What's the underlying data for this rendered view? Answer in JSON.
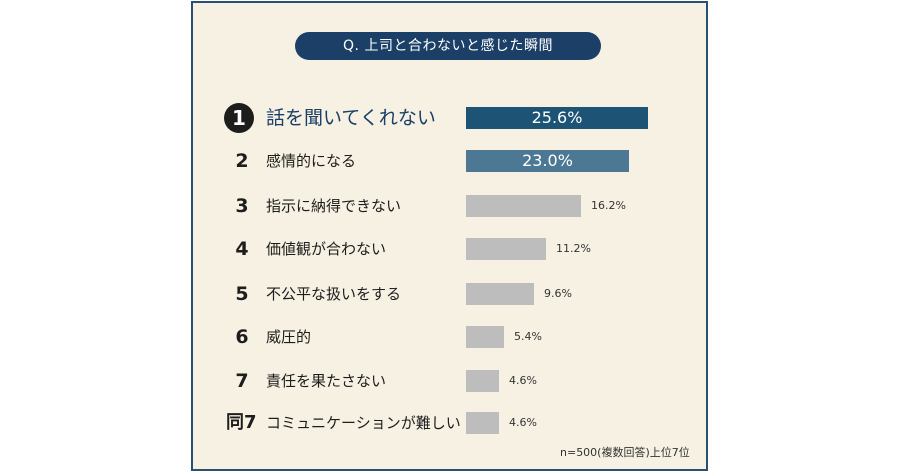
{
  "title": "Q. 上司と合わないと感じた瞬間",
  "note": "n=500(複数回答)上位7位",
  "colors": {
    "frame": "#2a4f74",
    "background": "#f6f1e2",
    "rank1": "#1d5476",
    "rank2": "#4c7893",
    "others": "#bdbdbd"
  },
  "chart_data": {
    "type": "bar",
    "orientation": "horizontal",
    "title": "Q. 上司と合わないと感じた瞬間",
    "ranks": [
      "1",
      "2",
      "3",
      "4",
      "5",
      "6",
      "7",
      "同7"
    ],
    "categories": [
      "話を聞いてくれない",
      "感情的になる",
      "指示に納得できない",
      "価値観が合わない",
      "不公平な扱いをする",
      "威圧的",
      "責任を果たさない",
      "コミュニケーションが難しい"
    ],
    "values": [
      25.6,
      23.0,
      16.2,
      11.2,
      9.6,
      5.4,
      4.6,
      4.6
    ],
    "value_labels": [
      "25.6%",
      "23.0%",
      "16.2%",
      "11.2%",
      "9.6%",
      "5.4%",
      "4.6%",
      "4.6%"
    ],
    "unit": "%",
    "grid": false
  }
}
